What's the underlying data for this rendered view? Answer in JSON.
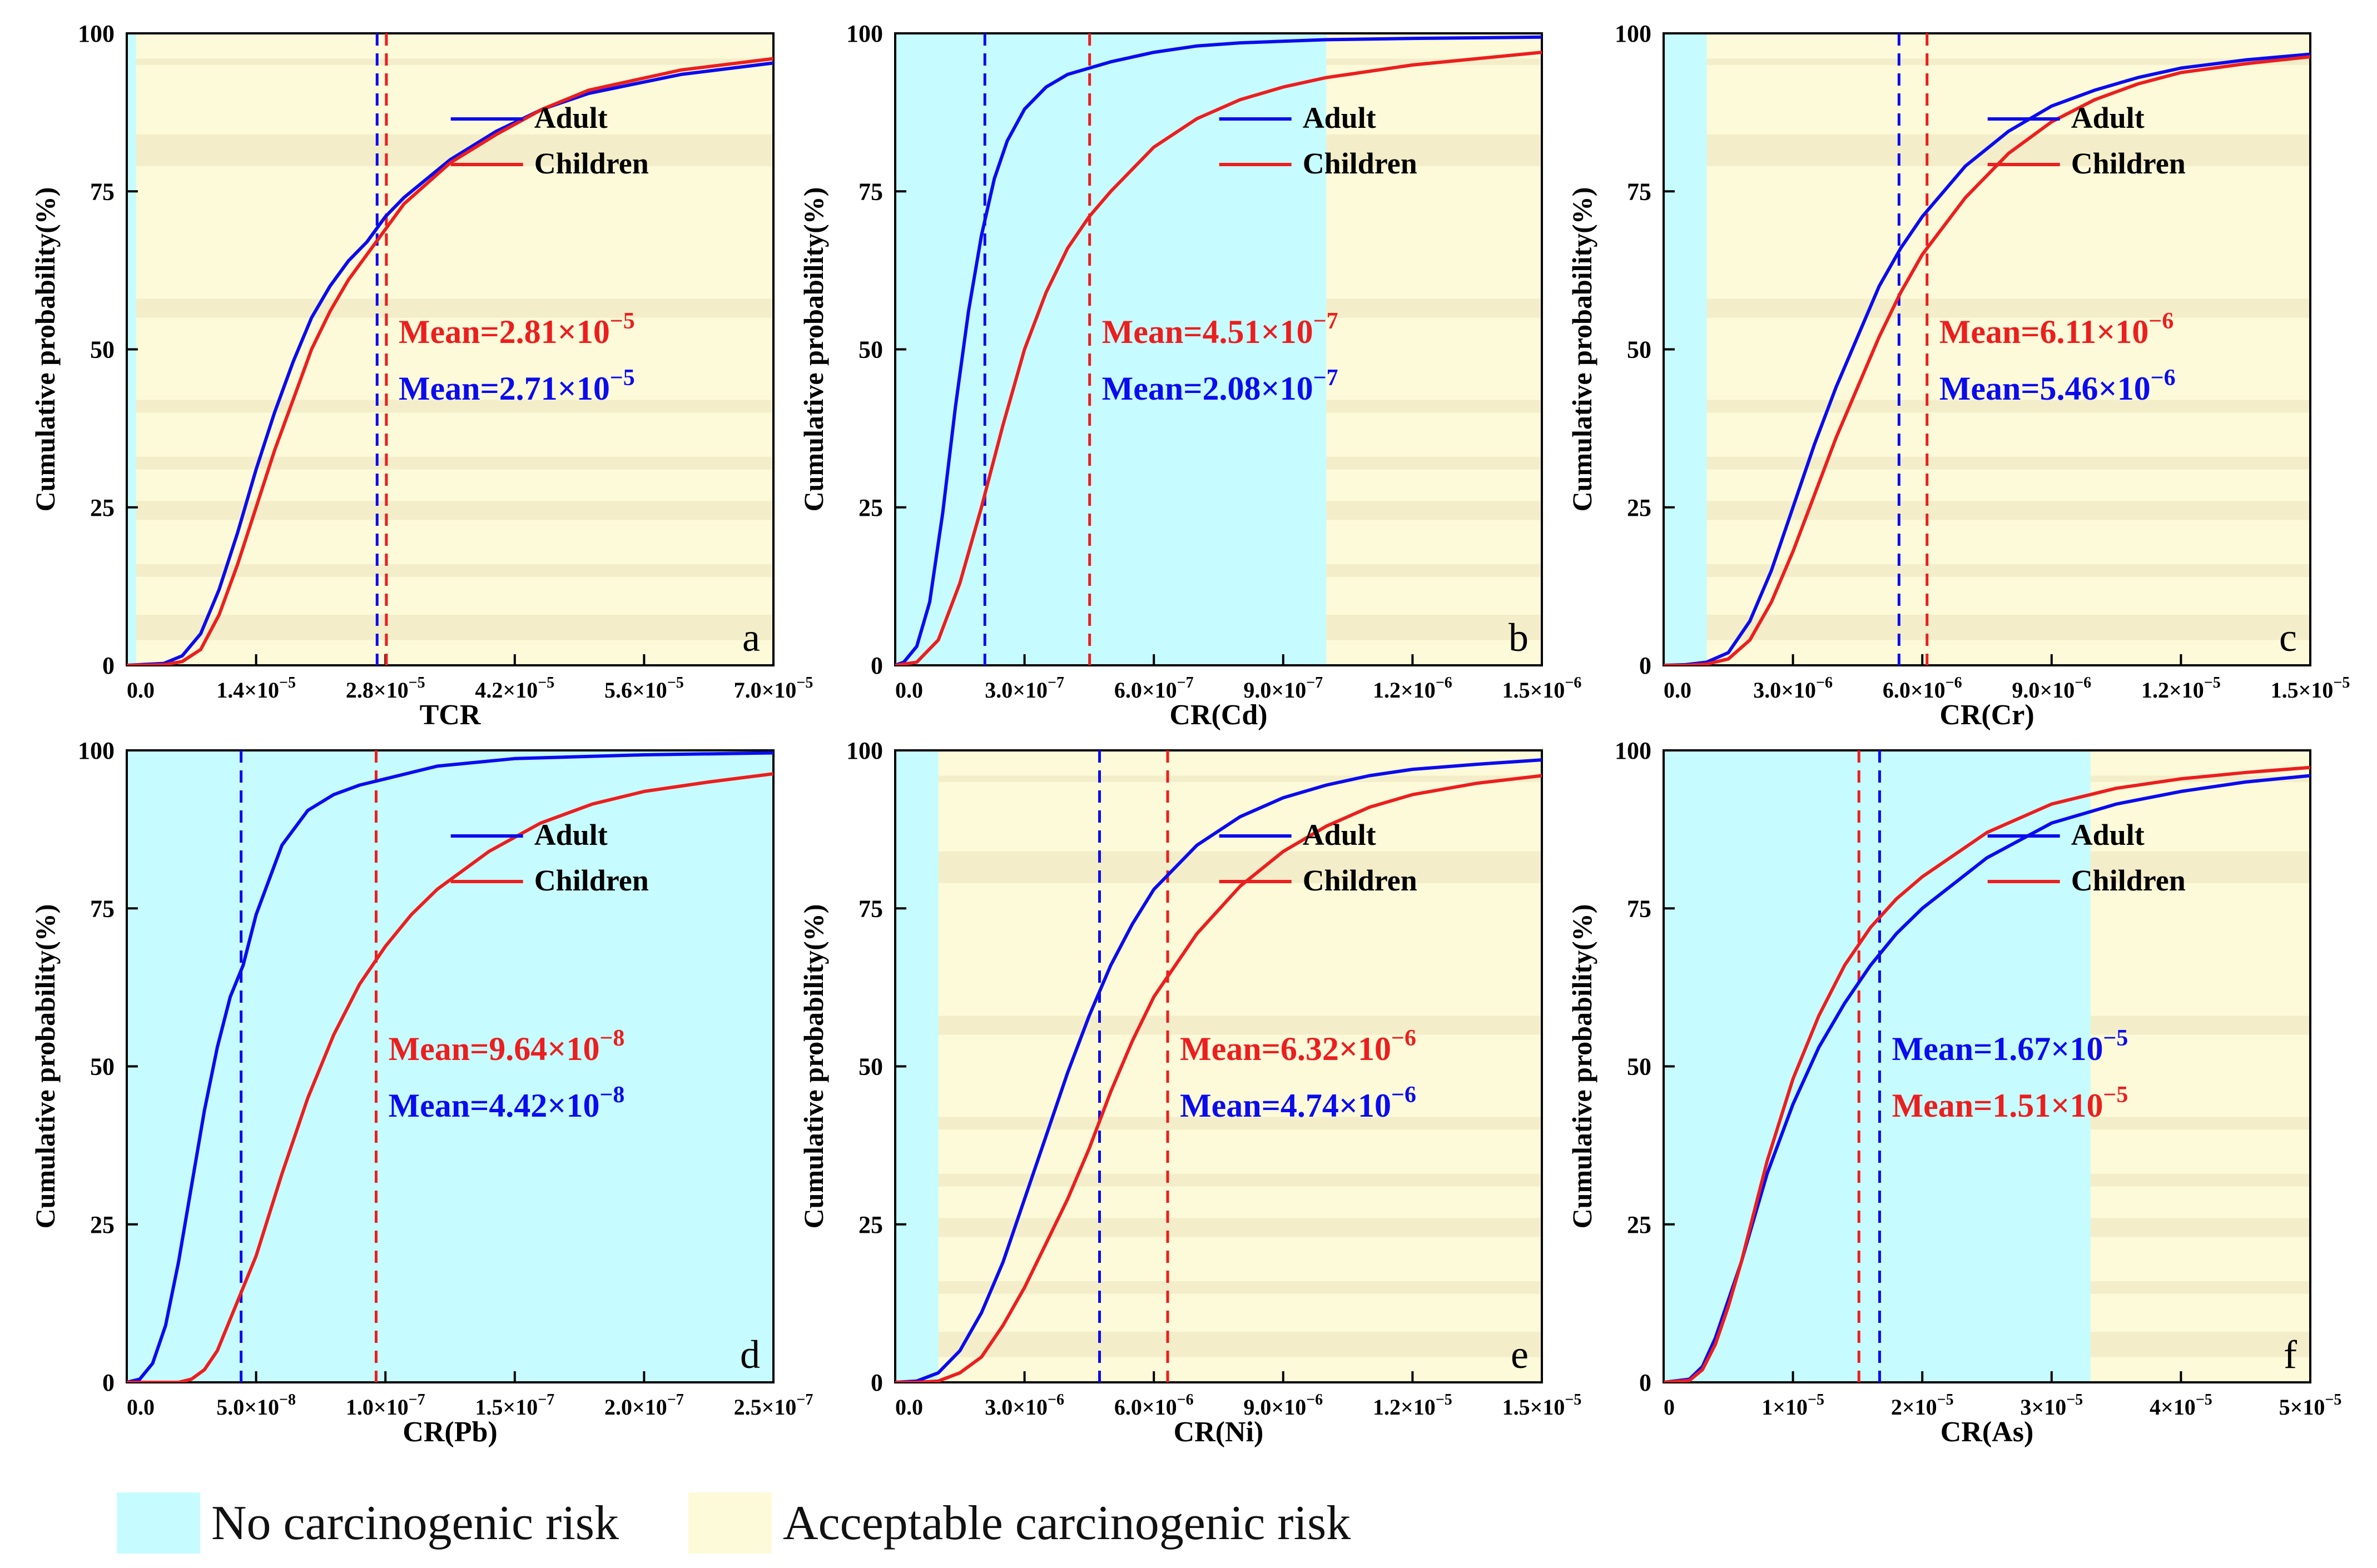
{
  "legend": {
    "no_risk_label": "No carcinogenic risk",
    "acceptable_label": "Acceptable carcinogenic risk",
    "no_risk_color": "#c6fcff",
    "acceptable_color": "#fcfad8",
    "acceptable_band_color": "#f2ecc8"
  },
  "series_styles": {
    "Adult": "#0b0bef",
    "Children": "#ec1e1e"
  },
  "chart_data": [
    {
      "panel": "a",
      "type": "line",
      "xlabel": "TCR",
      "ylabel": "Cumulative probability(%)",
      "xlim": [
        0,
        7e-05
      ],
      "ylim": [
        0,
        100
      ],
      "cyan_until": 1e-06,
      "xticks": [
        {
          "v": 0,
          "label": "0.0",
          "exp": ""
        },
        {
          "v": 1.4e-05,
          "label": "1.4×10",
          "exp": "−5"
        },
        {
          "v": 2.8e-05,
          "label": "2.8×10",
          "exp": "−5"
        },
        {
          "v": 4.2e-05,
          "label": "4.2×10",
          "exp": "−5"
        },
        {
          "v": 5.6e-05,
          "label": "5.6×10",
          "exp": "−5"
        },
        {
          "v": 7e-05,
          "label": "7.0×10",
          "exp": "−5"
        }
      ],
      "yticks": [
        "0",
        "25",
        "50",
        "75",
        "100"
      ],
      "legend_pos": "top-right",
      "series": [
        {
          "name": "Adult",
          "mean_value": 2.71e-05,
          "mean_text": "Mean=2.71×10",
          "mean_exp": "−5",
          "x": [
            0,
            4e-06,
            6e-06,
            8e-06,
            1e-05,
            1.2e-05,
            1.4e-05,
            1.6e-05,
            1.8e-05,
            2e-05,
            2.2e-05,
            2.4e-05,
            2.6e-05,
            2.8e-05,
            3e-05,
            3.5e-05,
            4e-05,
            4.5e-05,
            5e-05,
            6e-05,
            7e-05
          ],
          "y": [
            0,
            0.3,
            1.5,
            5,
            12,
            21,
            31,
            40,
            48,
            55,
            60,
            64,
            67,
            71,
            74,
            80,
            84.5,
            88,
            90.5,
            93.5,
            95.3
          ]
        },
        {
          "name": "Children",
          "mean_value": 2.81e-05,
          "mean_text": "Mean=2.81×10",
          "mean_exp": "−5",
          "x": [
            0,
            4e-06,
            6e-06,
            8e-06,
            1e-05,
            1.2e-05,
            1.4e-05,
            1.6e-05,
            1.8e-05,
            2e-05,
            2.2e-05,
            2.4e-05,
            2.6e-05,
            2.8e-05,
            3e-05,
            3.5e-05,
            4e-05,
            4.5e-05,
            5e-05,
            6e-05,
            7e-05
          ],
          "y": [
            0,
            0.1,
            0.6,
            2.5,
            8,
            16,
            25,
            34,
            42,
            50,
            56,
            61,
            65,
            69,
            73,
            79.5,
            84,
            88,
            91,
            94.2,
            96
          ]
        }
      ]
    },
    {
      "panel": "b",
      "type": "line",
      "xlabel": "CR(Cd)",
      "ylabel": "Cumulative probability(%)",
      "xlim": [
        0,
        1.5e-06
      ],
      "ylim": [
        0,
        100
      ],
      "cyan_until": 1e-06,
      "xticks": [
        {
          "v": 0,
          "label": "0.0",
          "exp": ""
        },
        {
          "v": 3e-07,
          "label": "3.0×10",
          "exp": "−7"
        },
        {
          "v": 6e-07,
          "label": "6.0×10",
          "exp": "−7"
        },
        {
          "v": 9e-07,
          "label": "9.0×10",
          "exp": "−7"
        },
        {
          "v": 1.2e-06,
          "label": "1.2×10",
          "exp": "−6"
        },
        {
          "v": 1.5e-06,
          "label": "1.5×10",
          "exp": "−6"
        }
      ],
      "yticks": [
        "0",
        "25",
        "50",
        "75",
        "100"
      ],
      "legend_pos": "top-right",
      "series": [
        {
          "name": "Adult",
          "mean_value": 2.08e-07,
          "mean_text": "Mean=2.08×10",
          "mean_exp": "−7",
          "x": [
            0,
            2e-08,
            5e-08,
            8e-08,
            1.1e-07,
            1.4e-07,
            1.7e-07,
            2e-07,
            2.3e-07,
            2.6e-07,
            3e-07,
            3.5e-07,
            4e-07,
            5e-07,
            6e-07,
            7e-07,
            8e-07,
            1e-06,
            1.2e-06,
            1.5e-06
          ],
          "y": [
            0,
            0.5,
            3,
            10,
            24,
            41,
            56,
            68,
            77,
            83,
            88,
            91.5,
            93.5,
            95.5,
            97,
            98,
            98.5,
            99,
            99.2,
            99.4
          ]
        },
        {
          "name": "Children",
          "mean_value": 4.51e-07,
          "mean_text": "Mean=4.51×10",
          "mean_exp": "−7",
          "x": [
            0,
            5e-08,
            1e-07,
            1.5e-07,
            2e-07,
            2.5e-07,
            3e-07,
            3.5e-07,
            4e-07,
            4.5e-07,
            5e-07,
            6e-07,
            7e-07,
            8e-07,
            9e-07,
            1e-06,
            1.2e-06,
            1.5e-06
          ],
          "y": [
            0,
            0.5,
            4,
            13,
            25,
            38,
            50,
            59,
            66,
            71,
            75,
            82,
            86.5,
            89.5,
            91.5,
            93,
            95,
            97
          ]
        }
      ]
    },
    {
      "panel": "c",
      "type": "line",
      "xlabel": "CR(Cr)",
      "ylabel": "Cumulative probability(%)",
      "xlim": [
        0,
        1.5e-05
      ],
      "ylim": [
        0,
        100
      ],
      "cyan_until": 1e-06,
      "xticks": [
        {
          "v": 0,
          "label": "0.0",
          "exp": ""
        },
        {
          "v": 3e-06,
          "label": "3.0×10",
          "exp": "−6"
        },
        {
          "v": 6e-06,
          "label": "6.0×10",
          "exp": "−6"
        },
        {
          "v": 9e-06,
          "label": "9.0×10",
          "exp": "−6"
        },
        {
          "v": 1.2e-05,
          "label": "1.2×10",
          "exp": "−5"
        },
        {
          "v": 1.5e-05,
          "label": "1.5×10",
          "exp": "−5"
        }
      ],
      "yticks": [
        "0",
        "25",
        "50",
        "75",
        "100"
      ],
      "legend_pos": "top-right",
      "series": [
        {
          "name": "Adult",
          "mean_value": 5.46e-06,
          "mean_text": "Mean=5.46×10",
          "mean_exp": "−6",
          "x": [
            0,
            5e-07,
            1e-06,
            1.5e-06,
            2e-06,
            2.5e-06,
            3e-06,
            3.5e-06,
            4e-06,
            4.5e-06,
            5e-06,
            5.5e-06,
            6e-06,
            7e-06,
            8e-06,
            9e-06,
            1e-05,
            1.1e-05,
            1.2e-05,
            1.35e-05,
            1.5e-05
          ],
          "y": [
            0,
            0.1,
            0.5,
            2,
            7,
            15,
            25,
            35,
            44,
            52,
            60,
            66,
            71,
            79,
            84.5,
            88.5,
            91,
            93,
            94.5,
            95.8,
            96.7
          ]
        },
        {
          "name": "Children",
          "mean_value": 6.11e-06,
          "mean_text": "Mean=6.11×10",
          "mean_exp": "−6",
          "x": [
            0,
            5e-07,
            1e-06,
            1.5e-06,
            2e-06,
            2.5e-06,
            3e-06,
            3.5e-06,
            4e-06,
            4.5e-06,
            5e-06,
            5.5e-06,
            6e-06,
            7e-06,
            8e-06,
            9e-06,
            1e-05,
            1.1e-05,
            1.2e-05,
            1.35e-05,
            1.5e-05
          ],
          "y": [
            0,
            0,
            0.2,
            1,
            4,
            10,
            18,
            27,
            36,
            44,
            52,
            59,
            65,
            74,
            81,
            86,
            89.5,
            92,
            93.8,
            95.2,
            96.3
          ]
        }
      ]
    },
    {
      "panel": "d",
      "type": "line",
      "xlabel": "CR(Pb)",
      "ylabel": "Cumulative probability(%)",
      "xlim": [
        0,
        2.5e-07
      ],
      "ylim": [
        0,
        100
      ],
      "cyan_until": 2.5e-07,
      "xticks": [
        {
          "v": 0,
          "label": "0.0",
          "exp": ""
        },
        {
          "v": 5e-08,
          "label": "5.0×10",
          "exp": "−8"
        },
        {
          "v": 1e-07,
          "label": "1.0×10",
          "exp": "−7"
        },
        {
          "v": 1.5e-07,
          "label": "1.5×10",
          "exp": "−7"
        },
        {
          "v": 2e-07,
          "label": "2.0×10",
          "exp": "−7"
        },
        {
          "v": 2.5e-07,
          "label": "2.5×10",
          "exp": "−7"
        }
      ],
      "yticks": [
        "0",
        "25",
        "50",
        "75",
        "100"
      ],
      "legend_pos": "top-right",
      "series": [
        {
          "name": "Adult",
          "mean_value": 4.42e-08,
          "mean_text": "Mean=4.42×10",
          "mean_exp": "−8",
          "x": [
            0,
            5e-09,
            1e-08,
            1.5e-08,
            2e-08,
            2.5e-08,
            3e-08,
            3.5e-08,
            4e-08,
            4.5e-08,
            5e-08,
            6e-08,
            7e-08,
            8e-08,
            9e-08,
            1e-07,
            1.2e-07,
            1.5e-07,
            2e-07,
            2.5e-07
          ],
          "y": [
            0,
            0.5,
            3,
            9,
            19,
            31,
            43,
            53,
            61,
            66,
            74,
            85,
            90.5,
            93,
            94.5,
            95.5,
            97.5,
            98.7,
            99.3,
            99.6
          ]
        },
        {
          "name": "Children",
          "mean_value": 9.64e-08,
          "mean_text": "Mean=9.64×10",
          "mean_exp": "−8",
          "x": [
            0,
            2e-08,
            2.5e-08,
            3e-08,
            3.5e-08,
            4e-08,
            5e-08,
            6e-08,
            7e-08,
            8e-08,
            9e-08,
            1e-07,
            1.1e-07,
            1.2e-07,
            1.4e-07,
            1.6e-07,
            1.8e-07,
            2e-07,
            2.25e-07,
            2.5e-07
          ],
          "y": [
            0,
            0,
            0.5,
            2,
            5,
            10,
            20,
            33,
            45,
            55,
            63,
            69,
            74,
            78,
            84,
            88.5,
            91.5,
            93.5,
            95,
            96.3
          ]
        }
      ]
    },
    {
      "panel": "e",
      "type": "line",
      "xlabel": "CR(Ni)",
      "ylabel": "Cumulative probability(%)",
      "xlim": [
        0,
        1.5e-05
      ],
      "ylim": [
        0,
        100
      ],
      "cyan_until": 1e-06,
      "xticks": [
        {
          "v": 0,
          "label": "0.0",
          "exp": ""
        },
        {
          "v": 3e-06,
          "label": "3.0×10",
          "exp": "−6"
        },
        {
          "v": 6e-06,
          "label": "6.0×10",
          "exp": "−6"
        },
        {
          "v": 9e-06,
          "label": "9.0×10",
          "exp": "−6"
        },
        {
          "v": 1.2e-05,
          "label": "1.2×10",
          "exp": "−5"
        },
        {
          "v": 1.5e-05,
          "label": "1.5×10",
          "exp": "−5"
        }
      ],
      "yticks": [
        "0",
        "25",
        "50",
        "75",
        "100"
      ],
      "legend_pos": "top-right",
      "series": [
        {
          "name": "Adult",
          "mean_value": 4.74e-06,
          "mean_text": "Mean=4.74×10",
          "mean_exp": "−6",
          "x": [
            0,
            5e-07,
            1e-06,
            1.5e-06,
            2e-06,
            2.5e-06,
            3e-06,
            3.5e-06,
            4e-06,
            4.5e-06,
            5e-06,
            5.5e-06,
            6e-06,
            7e-06,
            8e-06,
            9e-06,
            1e-05,
            1.1e-05,
            1.2e-05,
            1.35e-05,
            1.5e-05
          ],
          "y": [
            0,
            0.2,
            1.5,
            5,
            11,
            19,
            29,
            39,
            49,
            58,
            66,
            72.5,
            78,
            85,
            89.5,
            92.5,
            94.5,
            96,
            97,
            97.8,
            98.5
          ]
        },
        {
          "name": "Children",
          "mean_value": 6.32e-06,
          "mean_text": "Mean=6.32×10",
          "mean_exp": "−6",
          "x": [
            0,
            5e-07,
            1e-06,
            1.5e-06,
            2e-06,
            2.5e-06,
            3e-06,
            3.5e-06,
            4e-06,
            4.5e-06,
            5e-06,
            5.5e-06,
            6e-06,
            7e-06,
            8e-06,
            9e-06,
            1e-05,
            1.1e-05,
            1.2e-05,
            1.35e-05,
            1.5e-05
          ],
          "y": [
            0,
            0,
            0.2,
            1.5,
            4,
            9,
            15,
            22,
            29,
            37,
            46,
            54,
            61,
            71,
            78.5,
            84,
            88,
            91,
            93,
            94.8,
            96
          ]
        }
      ]
    },
    {
      "panel": "f",
      "type": "line",
      "xlabel": "CR(As)",
      "ylabel": "Cumulative probability(%)",
      "xlim": [
        0,
        5e-05
      ],
      "ylim": [
        0,
        100
      ],
      "cyan_until": 3.3e-05,
      "xticks": [
        {
          "v": 0,
          "label": "0",
          "exp": ""
        },
        {
          "v": 1e-05,
          "label": "1×10",
          "exp": "−5"
        },
        {
          "v": 2e-05,
          "label": "2×10",
          "exp": "−5"
        },
        {
          "v": 3e-05,
          "label": "3×10",
          "exp": "−5"
        },
        {
          "v": 4e-05,
          "label": "4×10",
          "exp": "−5"
        },
        {
          "v": 5e-05,
          "label": "5×10",
          "exp": "−5"
        }
      ],
      "yticks": [
        "0",
        "25",
        "50",
        "75",
        "100"
      ],
      "legend_pos": "top-right",
      "series": [
        {
          "name": "Adult",
          "mean_value": 1.67e-05,
          "mean_text": "Mean=1.67×10",
          "mean_exp": "−5",
          "x": [
            0,
            2e-06,
            3e-06,
            4e-06,
            5e-06,
            6e-06,
            7e-06,
            8e-06,
            1e-05,
            1.2e-05,
            1.4e-05,
            1.6e-05,
            1.8e-05,
            2e-05,
            2.5e-05,
            3e-05,
            3.5e-05,
            4e-05,
            4.5e-05,
            5e-05
          ],
          "y": [
            0,
            0.5,
            2.5,
            7,
            13,
            19,
            26,
            33,
            44,
            53,
            60,
            66,
            71,
            75,
            83,
            88.5,
            91.5,
            93.5,
            95,
            96
          ]
        },
        {
          "name": "Children",
          "mean_value": 1.51e-05,
          "mean_text": "Mean=1.51×10",
          "mean_exp": "−5",
          "x": [
            0,
            2e-06,
            3e-06,
            4e-06,
            5e-06,
            6e-06,
            7e-06,
            8e-06,
            1e-05,
            1.2e-05,
            1.4e-05,
            1.6e-05,
            1.8e-05,
            2e-05,
            2.5e-05,
            3e-05,
            3.5e-05,
            4e-05,
            4.5e-05,
            5e-05
          ],
          "y": [
            0,
            0.3,
            2,
            6,
            12,
            19,
            27,
            35,
            48,
            58,
            66,
            72,
            76.5,
            80,
            87,
            91.5,
            94,
            95.5,
            96.5,
            97.3
          ]
        }
      ]
    }
  ]
}
